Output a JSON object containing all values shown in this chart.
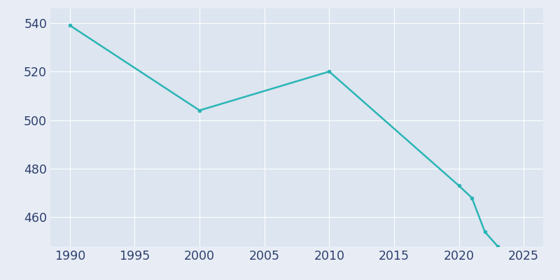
{
  "years": [
    1990,
    2000,
    2010,
    2020,
    2021,
    2022,
    2023
  ],
  "population": [
    539,
    504,
    520,
    473,
    468,
    454,
    448
  ],
  "line_color": "#2ab5b5",
  "marker": "o",
  "marker_size": 3,
  "line_width": 1.8,
  "fig_bg_color": "#e8edf5",
  "plot_bg_color": "#dce5f0",
  "grid_color": "#ffffff",
  "xlim": [
    1988.5,
    2026.5
  ],
  "ylim": [
    448,
    546
  ],
  "xticks": [
    1990,
    1995,
    2000,
    2005,
    2010,
    2015,
    2020,
    2025
  ],
  "yticks": [
    460,
    480,
    500,
    520,
    540
  ],
  "tick_color": "#2d3f6e",
  "tick_fontsize": 12.5
}
